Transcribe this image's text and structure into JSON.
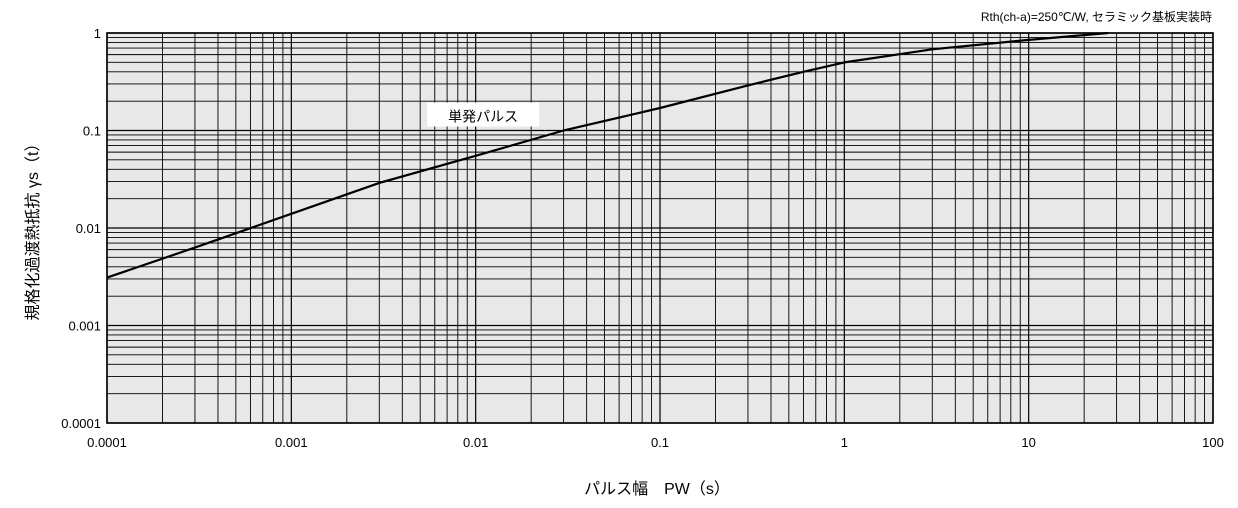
{
  "chart_data": {
    "type": "line",
    "title": "",
    "condition": "Rth(ch-a)=250℃/W, セラミック基板実装時",
    "xlabel": "パルス幅　PW（s）",
    "ylabel": "規格化過渡熱抵抗 γs（t）",
    "x_scale": "log",
    "y_scale": "log",
    "xlim": [
      0.0001,
      100
    ],
    "ylim": [
      0.0001,
      1
    ],
    "x_ticks": [
      0.0001,
      0.001,
      0.01,
      0.1,
      1,
      10,
      100
    ],
    "x_tick_labels": [
      "0.0001",
      "0.001",
      "0.01",
      "0.1",
      "1",
      "10",
      "100"
    ],
    "y_ticks": [
      0.0001,
      0.001,
      0.01,
      0.1,
      1
    ],
    "y_tick_labels": [
      "0.0001",
      "0.001",
      "0.01",
      "0.1",
      "1"
    ],
    "grid": true,
    "background": "#e8e8e8",
    "line_color": "#000000",
    "series": [
      {
        "name": "単発パルス",
        "x": [
          0.0001,
          0.0003,
          0.001,
          0.003,
          0.01,
          0.03,
          0.1,
          0.3,
          0.6,
          1,
          3,
          10,
          27
        ],
        "y": [
          0.0031,
          0.0063,
          0.014,
          0.029,
          0.055,
          0.1,
          0.17,
          0.29,
          0.4,
          0.5,
          0.68,
          0.85,
          1.0
        ]
      }
    ]
  }
}
